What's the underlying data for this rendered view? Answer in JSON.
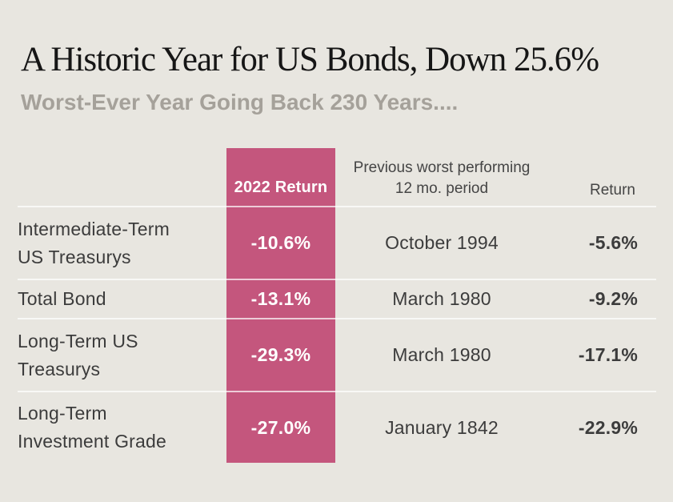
{
  "colors": {
    "background": "#e8e6e0",
    "highlight_pink": "#c4567d",
    "title_text": "#161616",
    "subtitle_text": "#a5a19a",
    "body_text": "#3c3c3c",
    "header_text": "#454545",
    "highlight_value_text": "#ffffff",
    "divider": "rgba(255,255,255,0.7)"
  },
  "chart_data": {
    "type": "table",
    "title": "A Historic Year for US Bonds, Down 25.6%",
    "subtitle": "Worst-Ever Year Going Back 230 Years....",
    "col_headers": [
      "",
      "2022 Return",
      "Previous worst performing\n12 mo. period",
      "Return"
    ],
    "rows": [
      {
        "label": "Intermediate-Term\nUS Treasurys",
        "return_2022": "-10.6%",
        "prev_worst_period": "October 1994",
        "prev_worst_return": "-5.6%"
      },
      {
        "label": "Total Bond",
        "return_2022": "-13.1%",
        "prev_worst_period": "March 1980",
        "prev_worst_return": "-9.2%"
      },
      {
        "label": "Long-Term US\nTreasurys",
        "return_2022": "-29.3%",
        "prev_worst_period": "March 1980",
        "prev_worst_return": "-17.1%"
      },
      {
        "label": "Long-Term\nInvestment Grade",
        "return_2022": "-27.0%",
        "prev_worst_period": "January 1842",
        "prev_worst_return": "-22.9%"
      }
    ],
    "highlighted_column": "2022 Return",
    "layout": {
      "grid": "off",
      "legend": "none",
      "value_alignment": "right"
    }
  }
}
